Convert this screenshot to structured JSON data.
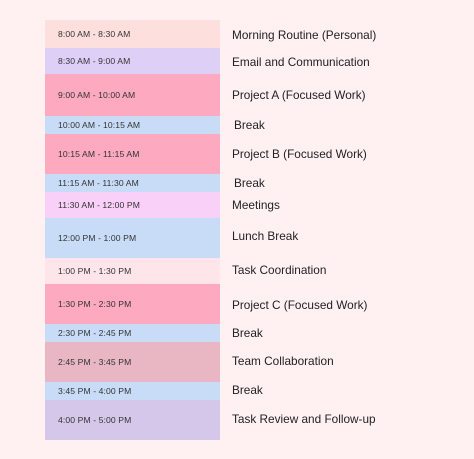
{
  "schedule": [
    {
      "time": "8:00 AM - 8:30 AM",
      "activity": "Morning Routine (Personal)",
      "color": "#fde0dd",
      "h": 28,
      "labelTop": 10
    },
    {
      "time": "8:30 AM - 9:00 AM",
      "activity": "Email and Communication",
      "color": "#decff7",
      "h": 26,
      "labelTop": 9
    },
    {
      "time": "9:00 AM - 10:00 AM",
      "activity": "Project A (Focused Work)",
      "color": "#fda9c0",
      "h": 42,
      "labelTop": 16
    },
    {
      "time": "10:00 AM - 10:15 AM",
      "activity": "Break",
      "color": "#c9dcf7",
      "h": 18,
      "labelTop": 4,
      "shift": 2
    },
    {
      "time": "10:15 AM - 11:15 AM",
      "activity": "Project B (Focused Work)",
      "color": "#fda9c0",
      "h": 40,
      "labelTop": 15
    },
    {
      "time": "11:15 AM - 11:30 AM",
      "activity": "Break",
      "color": "#c9dcf7",
      "h": 18,
      "labelTop": 4,
      "shift": 2
    },
    {
      "time": "11:30 AM - 12:00 PM",
      "activity": "Meetings",
      "color": "#f9d0f7",
      "h": 26,
      "labelTop": 8
    },
    {
      "time": "12:00 PM - 1:00 PM",
      "activity": "Lunch Break",
      "color": "#c9dcf7",
      "h": 40,
      "labelTop": 13
    },
    {
      "time": "1:00 PM - 1:30 PM",
      "activity": "Task Coordination",
      "color": "#fde5ea",
      "h": 26,
      "labelTop": 7
    },
    {
      "time": "1:30 PM - 2:30 PM",
      "activity": "Project C (Focused Work)",
      "color": "#fda9c0",
      "h": 40,
      "labelTop": 16
    },
    {
      "time": "2:30 PM - 2:45 PM",
      "activity": "Break",
      "color": "#c9dcf7",
      "h": 18,
      "labelTop": 4
    },
    {
      "time": "2:45 PM - 3:45 PM",
      "activity": "Team Collaboration",
      "color": "#e8b7c3",
      "h": 40,
      "labelTop": 14
    },
    {
      "time": "3:45 PM - 4:00 PM",
      "activity": "Break",
      "color": "#c9dcf7",
      "h": 18,
      "labelTop": 3
    },
    {
      "time": "4:00 PM - 5:00 PM",
      "activity": "Task Review and Follow-up",
      "color": "#d4c7ea",
      "h": 40,
      "labelTop": 14
    }
  ]
}
